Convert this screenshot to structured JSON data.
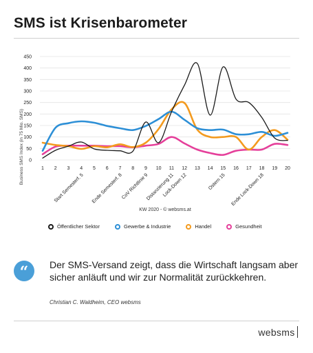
{
  "header": {
    "title": "SMS ist Krisenbarometer"
  },
  "chart_data": {
    "type": "line",
    "ylabel": "Business SMS Index (in 75 Mio. SMS)",
    "xlabel": "KW 2020 - © websms.at",
    "ylim": [
      0,
      450
    ],
    "yticks": [
      0,
      50,
      100,
      150,
      200,
      250,
      300,
      350,
      400,
      450
    ],
    "xticks": [
      "1",
      "2",
      "3",
      "4",
      "5",
      "6",
      "7",
      "8",
      "9",
      "10",
      "11",
      "12",
      "13",
      "14",
      "15",
      "16",
      "17",
      "18",
      "19",
      "20"
    ],
    "x": [
      1,
      2,
      3,
      4,
      5,
      6,
      7,
      8,
      9,
      10,
      11,
      12,
      13,
      14,
      15,
      16,
      17,
      18,
      19,
      20
    ],
    "event_labels": [
      {
        "x": 4,
        "label": "Start Semesterf. 5"
      },
      {
        "x": 7,
        "label": "Ende Semesterf. 8"
      },
      {
        "x": 9,
        "label": "CoV Richtlinie 9"
      },
      {
        "x": 11,
        "label": "Distanzierung 11"
      },
      {
        "x": 12,
        "label": "Lock-Down 12"
      },
      {
        "x": 15,
        "label": "Ostern 15"
      },
      {
        "x": 18,
        "label": "Ende Lock-Down 18"
      }
    ],
    "grid": true,
    "legend_position": "bottom",
    "series": [
      {
        "name": "Öffentlicher Sektor",
        "color": "#1a1a1a",
        "values": [
          8,
          42,
          60,
          78,
          48,
          42,
          40,
          38,
          165,
          75,
          210,
          325,
          420,
          195,
          405,
          265,
          250,
          185,
          95,
          85
        ]
      },
      {
        "name": "Gewerbe & Industrie",
        "color": "#2d8fd6",
        "values": [
          40,
          140,
          160,
          168,
          162,
          148,
          138,
          130,
          148,
          178,
          210,
          175,
          138,
          130,
          132,
          112,
          112,
          122,
          105,
          118
        ]
      },
      {
        "name": "Handel",
        "color": "#f39a1e",
        "values": [
          75,
          65,
          60,
          48,
          60,
          55,
          68,
          56,
          75,
          135,
          220,
          248,
          132,
          100,
          100,
          100,
          45,
          100,
          130,
          88
        ]
      },
      {
        "name": "Gesundheit",
        "color": "#e53f9a",
        "values": [
          25,
          58,
          62,
          62,
          62,
          60,
          60,
          55,
          62,
          70,
          100,
          72,
          45,
          30,
          22,
          40,
          45,
          45,
          70,
          65
        ]
      }
    ]
  },
  "quote": {
    "mark": "“",
    "text": "Der SMS-Versand zeigt, dass die Wirtschaft langsam aber sicher anläuft und wir zur Normalität zurückkehren.",
    "author": "Christian C. Waldheim, CEO websms"
  },
  "footer": {
    "brand": "websms"
  }
}
